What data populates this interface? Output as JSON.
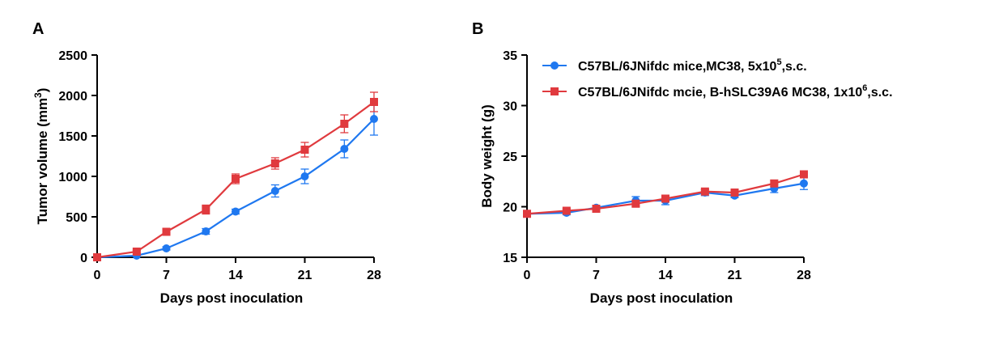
{
  "panels": {
    "A": {
      "label": "A"
    },
    "B": {
      "label": "B"
    }
  },
  "legend": {
    "series1_text": "C57BL/6JNifdc mice,MC38, 5x10",
    "series1_sup": "5",
    "series1_tail": ",s.c.",
    "series2_text": "C57BL/6JNifdc mcie, B-hSLC39A6 MC38, 1x10",
    "series2_sup": "6",
    "series2_tail": ",s.c."
  },
  "colors": {
    "series1": "#1f78f0",
    "series2": "#e03a3e"
  },
  "chart_data": [
    {
      "type": "line",
      "panel": "A",
      "xlabel": "Days post inoculation",
      "ylabel": "Tumor volume (mm³)",
      "ylabel_main": "Tumor volume (mm",
      "ylabel_sup": "3",
      "ylabel_tail": ")",
      "xlim": [
        0,
        28
      ],
      "ylim": [
        0,
        2500
      ],
      "xticks": [
        0,
        7,
        14,
        21,
        28
      ],
      "yticks": [
        0,
        500,
        1000,
        1500,
        2000,
        2500
      ],
      "series": [
        {
          "name": "C57BL/6JNifdc mice,MC38, 5x10^5,s.c.",
          "color": "#1f78f0",
          "marker": "circle",
          "x": [
            0,
            4,
            7,
            11,
            14,
            18,
            21,
            25,
            28
          ],
          "y": [
            0,
            20,
            110,
            320,
            565,
            820,
            1000,
            1340,
            1710
          ],
          "err": [
            0,
            10,
            20,
            35,
            30,
            75,
            90,
            110,
            200
          ]
        },
        {
          "name": "C57BL/6JNifdc mcie, B-hSLC39A6 MC38, 1x10^6,s.c.",
          "color": "#e03a3e",
          "marker": "square",
          "x": [
            0,
            4,
            7,
            11,
            14,
            18,
            21,
            25,
            28
          ],
          "y": [
            0,
            70,
            315,
            590,
            970,
            1160,
            1330,
            1650,
            1920
          ],
          "err": [
            0,
            15,
            30,
            55,
            60,
            70,
            90,
            110,
            120
          ]
        }
      ]
    },
    {
      "type": "line",
      "panel": "B",
      "xlabel": "Days post inoculation",
      "ylabel": "Body weight (g)",
      "xlim": [
        0,
        28
      ],
      "ylim": [
        15,
        35
      ],
      "xticks": [
        0,
        7,
        14,
        21,
        28
      ],
      "yticks": [
        15,
        20,
        25,
        30,
        35
      ],
      "series": [
        {
          "name": "C57BL/6JNifdc mice,MC38, 5x10^5,s.c.",
          "color": "#1f78f0",
          "marker": "circle",
          "x": [
            0,
            4,
            7,
            11,
            14,
            18,
            21,
            25,
            28
          ],
          "y": [
            19.3,
            19.4,
            19.9,
            20.6,
            20.6,
            21.4,
            21.1,
            21.8,
            22.3
          ],
          "err": [
            0.2,
            0.2,
            0.2,
            0.4,
            0.4,
            0.3,
            0.2,
            0.4,
            0.6
          ]
        },
        {
          "name": "C57BL/6JNifdc mcie, B-hSLC39A6 MC38, 1x10^6,s.c.",
          "color": "#e03a3e",
          "marker": "square",
          "x": [
            0,
            4,
            7,
            11,
            14,
            18,
            21,
            25,
            28
          ],
          "y": [
            19.3,
            19.6,
            19.8,
            20.3,
            20.8,
            21.5,
            21.4,
            22.3,
            23.2
          ],
          "err": [
            0.2,
            0.2,
            0.2,
            0.3,
            0.3,
            0.2,
            0.2,
            0.3,
            0.3
          ]
        }
      ]
    }
  ]
}
